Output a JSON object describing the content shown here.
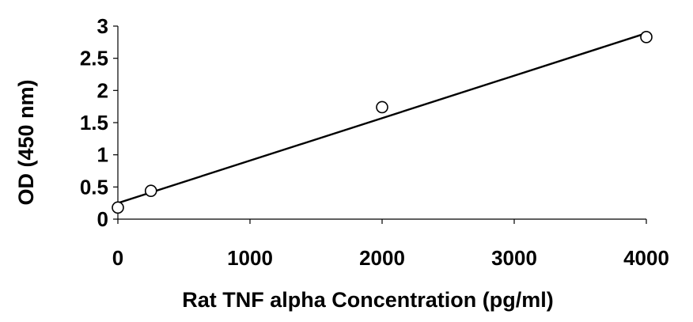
{
  "chart_data": {
    "type": "scatter",
    "xlabel": "Rat TNF alpha Concentration (pg/ml)",
    "ylabel": "OD (450 nm)",
    "xlim": [
      0,
      4000
    ],
    "ylim": [
      0,
      3
    ],
    "xticks": [
      0,
      1000,
      2000,
      3000,
      4000
    ],
    "yticks": [
      0,
      0.5,
      1,
      1.5,
      2,
      2.5,
      3
    ],
    "xtick_labels": [
      "0",
      "1000",
      "2000",
      "3000",
      "4000"
    ],
    "ytick_labels": [
      "0",
      "0.5",
      "1",
      "1.5",
      "2",
      "2.5",
      "3"
    ],
    "grid": false,
    "series": [
      {
        "marker": "open-circle",
        "x": [
          0,
          250,
          2000,
          4000
        ],
        "y": [
          0.18,
          0.44,
          1.74,
          2.83
        ]
      }
    ],
    "trendline": {
      "type": "linear",
      "x": [
        0,
        4000
      ],
      "y": [
        0.25,
        2.89
      ]
    }
  }
}
